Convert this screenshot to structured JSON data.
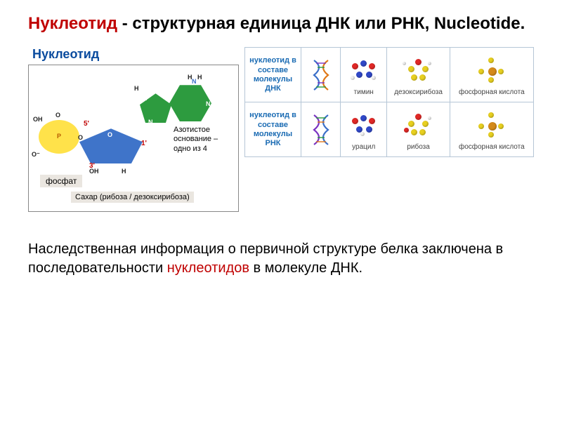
{
  "title": {
    "prefix": "Нуклеотид",
    "rest": " - структурная единица ДНК или РНК, Nucleotide."
  },
  "left": {
    "header": "Нуклеотид",
    "phosphate_label": "фосфат",
    "sugar_label": "Сахар (рибоза / дезоксирибоза)",
    "base_label": "Азотистое основание – одно из 4",
    "atoms": {
      "OH": "OH",
      "O": "O",
      "Ominus": "O⁻",
      "P": "P",
      "N": "N",
      "H": "H",
      "NH2": "N"
    },
    "prime": {
      "p5": "5'",
      "p3": "3'",
      "p1": "1'"
    }
  },
  "table": {
    "rows": [
      {
        "label": "нуклеотид в составе молекулы ДНК",
        "helix_colors": [
          "#3a6fc9",
          "#e07818",
          "#7a33c2",
          "#2a9a3a"
        ],
        "items": [
          {
            "caption": "тимин",
            "balls": [
              {
                "c": "#3048c8",
                "x": 20,
                "y": 6,
                "s": 9
              },
              {
                "c": "#e02826",
                "x": 8,
                "y": 10,
                "s": 9
              },
              {
                "c": "#e02826",
                "x": 32,
                "y": 10,
                "s": 9
              },
              {
                "c": "#3048c8",
                "x": 14,
                "y": 22,
                "s": 9
              },
              {
                "c": "#3048c8",
                "x": 28,
                "y": 22,
                "s": 9
              },
              {
                "c": "#f6f6f6",
                "x": 6,
                "y": 28,
                "s": 6
              },
              {
                "c": "#f6f6f6",
                "x": 36,
                "y": 28,
                "s": 6
              }
            ]
          },
          {
            "caption": "дезоксирибоза",
            "balls": [
              {
                "c": "#e02826",
                "x": 20,
                "y": 4,
                "s": 9
              },
              {
                "c": "#e8d020",
                "x": 10,
                "y": 14,
                "s": 9
              },
              {
                "c": "#e8d020",
                "x": 30,
                "y": 14,
                "s": 9
              },
              {
                "c": "#e8d020",
                "x": 14,
                "y": 26,
                "s": 9
              },
              {
                "c": "#e8d020",
                "x": 26,
                "y": 26,
                "s": 9
              },
              {
                "c": "#f6f6f6",
                "x": 2,
                "y": 8,
                "s": 5
              },
              {
                "c": "#f6f6f6",
                "x": 38,
                "y": 8,
                "s": 5
              }
            ]
          },
          {
            "caption": "фосфорная кислота",
            "balls": [
              {
                "c": "#d48a1a",
                "x": 20,
                "y": 16,
                "s": 12
              },
              {
                "c": "#e8d020",
                "x": 20,
                "y": 2,
                "s": 8
              },
              {
                "c": "#e8d020",
                "x": 6,
                "y": 18,
                "s": 8
              },
              {
                "c": "#e8d020",
                "x": 34,
                "y": 18,
                "s": 8
              },
              {
                "c": "#e8d020",
                "x": 20,
                "y": 30,
                "s": 8
              }
            ]
          }
        ]
      },
      {
        "label": "нуклеотид в составе молекулы РНК",
        "helix_colors": [
          "#7a33c2",
          "#3a6fc9",
          "#2a9a3a",
          "#e07818"
        ],
        "items": [
          {
            "caption": "урацил",
            "balls": [
              {
                "c": "#3048c8",
                "x": 20,
                "y": 6,
                "s": 9
              },
              {
                "c": "#e02826",
                "x": 8,
                "y": 10,
                "s": 9
              },
              {
                "c": "#e02826",
                "x": 32,
                "y": 10,
                "s": 9
              },
              {
                "c": "#3048c8",
                "x": 14,
                "y": 22,
                "s": 9
              },
              {
                "c": "#3048c8",
                "x": 28,
                "y": 22,
                "s": 9
              },
              {
                "c": "#f6f6f6",
                "x": 20,
                "y": 30,
                "s": 6
              }
            ]
          },
          {
            "caption": "рибоза",
            "balls": [
              {
                "c": "#e02826",
                "x": 20,
                "y": 4,
                "s": 9
              },
              {
                "c": "#e8d020",
                "x": 10,
                "y": 14,
                "s": 9
              },
              {
                "c": "#e8d020",
                "x": 30,
                "y": 14,
                "s": 9
              },
              {
                "c": "#e8d020",
                "x": 14,
                "y": 26,
                "s": 9
              },
              {
                "c": "#e8d020",
                "x": 26,
                "y": 26,
                "s": 9
              },
              {
                "c": "#e02826",
                "x": 4,
                "y": 24,
                "s": 7
              },
              {
                "c": "#f6f6f6",
                "x": 38,
                "y": 8,
                "s": 5
              }
            ]
          },
          {
            "caption": "фосфорная кислота",
            "balls": [
              {
                "c": "#d48a1a",
                "x": 20,
                "y": 16,
                "s": 12
              },
              {
                "c": "#e8d020",
                "x": 20,
                "y": 2,
                "s": 8
              },
              {
                "c": "#e8d020",
                "x": 6,
                "y": 18,
                "s": 8
              },
              {
                "c": "#e8d020",
                "x": 34,
                "y": 18,
                "s": 8
              },
              {
                "c": "#e8d020",
                "x": 20,
                "y": 30,
                "s": 8
              }
            ]
          }
        ]
      }
    ]
  },
  "footer": {
    "pre": "Наследственная информация о первичной структуре белка заключена в последовательности ",
    "hl": "нуклеотидов",
    "post": " в молекуле ДНК."
  },
  "colors": {
    "title_hl": "#c00000",
    "header_blue": "#0a4b9e",
    "phos_bg": "#ffe24a",
    "sugar_bg": "#3f74c9",
    "base_bg": "#2d9b3f",
    "cell_border": "#b5c6d6",
    "cell_label": "#1a6bb3"
  }
}
